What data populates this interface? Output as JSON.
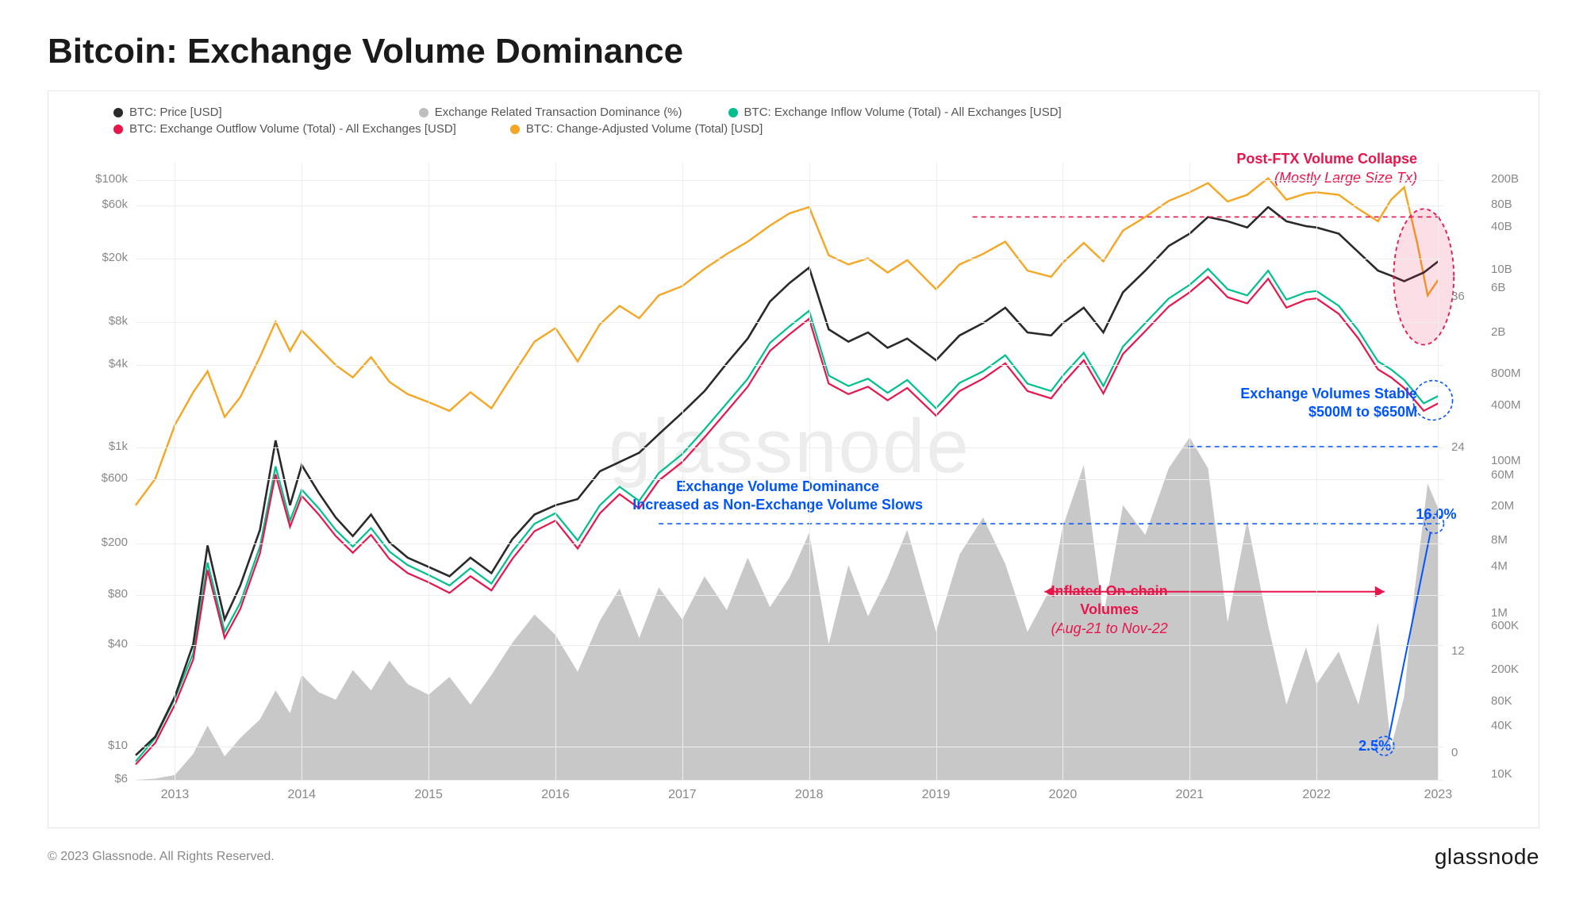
{
  "title": "Bitcoin: Exchange Volume Dominance",
  "copyright": "© 2023 Glassnode. All Rights Reserved.",
  "brand": "glassnode",
  "watermark": "glassnode",
  "legend": [
    {
      "label": "BTC: Price [USD]",
      "color": "#2a2a2a"
    },
    {
      "label": "Exchange Related Transaction Dominance (%)",
      "color": "#bfbfbf"
    },
    {
      "label": "BTC: Exchange Inflow Volume (Total) - All Exchanges [USD]",
      "color": "#00bf8f"
    },
    {
      "label": "BTC: Exchange Outflow Volume (Total) - All Exchanges [USD]",
      "color": "#e8154b"
    },
    {
      "label": "BTC: Change-Adjusted Volume (Total) [USD]",
      "color": "#f5a623"
    }
  ],
  "y_left": {
    "scale": "log",
    "ticks": [
      "$100k",
      "$60k",
      "",
      "$20k",
      "",
      "$8k",
      "",
      "$4k",
      "",
      "",
      "$1k",
      "",
      "$600",
      "",
      "",
      "",
      "$200",
      "",
      "",
      "$80",
      "",
      "",
      "$40",
      "",
      "",
      "",
      "",
      "$10",
      "",
      "$6"
    ],
    "positions": [
      0.028,
      0.069,
      0.11,
      0.155,
      0.205,
      0.258,
      0.293,
      0.328,
      0.398,
      0.428,
      0.462,
      0.488,
      0.513,
      0.538,
      0.565,
      0.592,
      0.617,
      0.638,
      0.668,
      0.7,
      0.73,
      0.755,
      0.782,
      0.816,
      0.848,
      0.88,
      0.91,
      0.946,
      0.973,
      1.0
    ]
  },
  "y_right1": {
    "scale": "linear",
    "ticks": [
      "",
      "36",
      "",
      "",
      "24",
      "",
      "",
      "",
      "12",
      "",
      "",
      "0"
    ],
    "positions": [
      0.0,
      0.218,
      0.3,
      0.38,
      0.463,
      0.545,
      0.628,
      0.71,
      0.793,
      0.875,
      0.917,
      0.958
    ]
  },
  "y_right2": {
    "scale": "log",
    "ticks": [
      "200B",
      "80B",
      "40B",
      "",
      "10B",
      "6B",
      "",
      "2B",
      "",
      "800M",
      "",
      "400M",
      "",
      "",
      "100M",
      "60M",
      "",
      "20M",
      "",
      "8M",
      "",
      "4M",
      "",
      "",
      "1M",
      "600K",
      "",
      "",
      "200K",
      "",
      "80K",
      "",
      "40K",
      "",
      "",
      "10K"
    ],
    "positions": [
      0.028,
      0.07,
      0.106,
      0.138,
      0.175,
      0.204,
      0.24,
      0.276,
      0.31,
      0.343,
      0.369,
      0.395,
      0.424,
      0.454,
      0.484,
      0.508,
      0.53,
      0.558,
      0.585,
      0.613,
      0.634,
      0.655,
      0.681,
      0.706,
      0.731,
      0.752,
      0.775,
      0.799,
      0.823,
      0.848,
      0.874,
      0.895,
      0.914,
      0.938,
      0.96,
      0.992
    ]
  },
  "x_axis": {
    "years": [
      "2013",
      "2014",
      "2015",
      "2016",
      "2017",
      "2018",
      "2019",
      "2020",
      "2021",
      "2022",
      "2023"
    ],
    "positions": [
      0.03,
      0.127,
      0.224,
      0.321,
      0.418,
      0.515,
      0.612,
      0.709,
      0.806,
      0.903,
      0.996
    ]
  },
  "colors": {
    "price": "#2a2a2a",
    "dominance_fill": "#b5b5b5",
    "inflow": "#00bf8f",
    "outflow": "#e8154b",
    "volume": "#f5a623",
    "grid": "#eeeeee",
    "bg": "#ffffff"
  },
  "series_price": [
    [
      0.0,
      0.96
    ],
    [
      0.015,
      0.93
    ],
    [
      0.03,
      0.865
    ],
    [
      0.044,
      0.78
    ],
    [
      0.055,
      0.62
    ],
    [
      0.068,
      0.74
    ],
    [
      0.08,
      0.685
    ],
    [
      0.095,
      0.595
    ],
    [
      0.107,
      0.45
    ],
    [
      0.118,
      0.555
    ],
    [
      0.127,
      0.49
    ],
    [
      0.14,
      0.535
    ],
    [
      0.153,
      0.575
    ],
    [
      0.166,
      0.605
    ],
    [
      0.18,
      0.57
    ],
    [
      0.194,
      0.615
    ],
    [
      0.208,
      0.64
    ],
    [
      0.224,
      0.655
    ],
    [
      0.24,
      0.67
    ],
    [
      0.256,
      0.64
    ],
    [
      0.272,
      0.665
    ],
    [
      0.288,
      0.61
    ],
    [
      0.305,
      0.57
    ],
    [
      0.321,
      0.555
    ],
    [
      0.338,
      0.545
    ],
    [
      0.355,
      0.5
    ],
    [
      0.37,
      0.485
    ],
    [
      0.385,
      0.47
    ],
    [
      0.4,
      0.44
    ],
    [
      0.418,
      0.405
    ],
    [
      0.435,
      0.37
    ],
    [
      0.452,
      0.325
    ],
    [
      0.468,
      0.285
    ],
    [
      0.485,
      0.225
    ],
    [
      0.5,
      0.195
    ],
    [
      0.515,
      0.17
    ],
    [
      0.53,
      0.27
    ],
    [
      0.545,
      0.29
    ],
    [
      0.56,
      0.275
    ],
    [
      0.575,
      0.3
    ],
    [
      0.59,
      0.285
    ],
    [
      0.612,
      0.32
    ],
    [
      0.63,
      0.28
    ],
    [
      0.648,
      0.26
    ],
    [
      0.665,
      0.235
    ],
    [
      0.682,
      0.275
    ],
    [
      0.7,
      0.28
    ],
    [
      0.709,
      0.26
    ],
    [
      0.725,
      0.235
    ],
    [
      0.74,
      0.275
    ],
    [
      0.755,
      0.21
    ],
    [
      0.772,
      0.175
    ],
    [
      0.79,
      0.135
    ],
    [
      0.806,
      0.115
    ],
    [
      0.82,
      0.088
    ],
    [
      0.835,
      0.095
    ],
    [
      0.85,
      0.105
    ],
    [
      0.866,
      0.072
    ],
    [
      0.88,
      0.095
    ],
    [
      0.895,
      0.103
    ],
    [
      0.903,
      0.105
    ],
    [
      0.92,
      0.115
    ],
    [
      0.935,
      0.145
    ],
    [
      0.95,
      0.175
    ],
    [
      0.96,
      0.183
    ],
    [
      0.97,
      0.192
    ],
    [
      0.985,
      0.178
    ],
    [
      0.996,
      0.16
    ]
  ],
  "series_volume": [
    [
      0.0,
      0.555
    ],
    [
      0.015,
      0.512
    ],
    [
      0.03,
      0.425
    ],
    [
      0.044,
      0.372
    ],
    [
      0.055,
      0.338
    ],
    [
      0.068,
      0.412
    ],
    [
      0.08,
      0.38
    ],
    [
      0.095,
      0.315
    ],
    [
      0.107,
      0.258
    ],
    [
      0.118,
      0.305
    ],
    [
      0.127,
      0.272
    ],
    [
      0.14,
      0.3
    ],
    [
      0.153,
      0.328
    ],
    [
      0.166,
      0.348
    ],
    [
      0.18,
      0.315
    ],
    [
      0.194,
      0.355
    ],
    [
      0.208,
      0.375
    ],
    [
      0.224,
      0.388
    ],
    [
      0.24,
      0.402
    ],
    [
      0.256,
      0.372
    ],
    [
      0.272,
      0.398
    ],
    [
      0.288,
      0.345
    ],
    [
      0.305,
      0.29
    ],
    [
      0.321,
      0.268
    ],
    [
      0.338,
      0.322
    ],
    [
      0.355,
      0.262
    ],
    [
      0.37,
      0.232
    ],
    [
      0.385,
      0.252
    ],
    [
      0.4,
      0.215
    ],
    [
      0.418,
      0.2
    ],
    [
      0.435,
      0.172
    ],
    [
      0.452,
      0.148
    ],
    [
      0.468,
      0.128
    ],
    [
      0.485,
      0.102
    ],
    [
      0.5,
      0.082
    ],
    [
      0.515,
      0.072
    ],
    [
      0.53,
      0.15
    ],
    [
      0.545,
      0.165
    ],
    [
      0.56,
      0.155
    ],
    [
      0.575,
      0.178
    ],
    [
      0.59,
      0.158
    ],
    [
      0.612,
      0.205
    ],
    [
      0.63,
      0.165
    ],
    [
      0.648,
      0.148
    ],
    [
      0.665,
      0.128
    ],
    [
      0.682,
      0.175
    ],
    [
      0.7,
      0.185
    ],
    [
      0.709,
      0.162
    ],
    [
      0.725,
      0.13
    ],
    [
      0.74,
      0.16
    ],
    [
      0.755,
      0.11
    ],
    [
      0.772,
      0.088
    ],
    [
      0.79,
      0.062
    ],
    [
      0.806,
      0.048
    ],
    [
      0.82,
      0.033
    ],
    [
      0.835,
      0.063
    ],
    [
      0.85,
      0.052
    ],
    [
      0.866,
      0.025
    ],
    [
      0.88,
      0.06
    ],
    [
      0.895,
      0.05
    ],
    [
      0.903,
      0.048
    ],
    [
      0.92,
      0.052
    ],
    [
      0.935,
      0.075
    ],
    [
      0.95,
      0.095
    ],
    [
      0.96,
      0.06
    ],
    [
      0.97,
      0.04
    ],
    [
      0.98,
      0.13
    ],
    [
      0.988,
      0.215
    ],
    [
      0.996,
      0.19
    ]
  ],
  "series_inflow": [
    [
      0.0,
      0.97
    ],
    [
      0.015,
      0.932
    ],
    [
      0.03,
      0.868
    ],
    [
      0.044,
      0.795
    ],
    [
      0.055,
      0.648
    ],
    [
      0.068,
      0.76
    ],
    [
      0.08,
      0.713
    ],
    [
      0.095,
      0.622
    ],
    [
      0.107,
      0.492
    ],
    [
      0.118,
      0.58
    ],
    [
      0.127,
      0.53
    ],
    [
      0.14,
      0.56
    ],
    [
      0.153,
      0.595
    ],
    [
      0.166,
      0.622
    ],
    [
      0.18,
      0.592
    ],
    [
      0.194,
      0.63
    ],
    [
      0.208,
      0.652
    ],
    [
      0.224,
      0.668
    ],
    [
      0.24,
      0.685
    ],
    [
      0.256,
      0.657
    ],
    [
      0.272,
      0.682
    ],
    [
      0.288,
      0.63
    ],
    [
      0.305,
      0.585
    ],
    [
      0.321,
      0.568
    ],
    [
      0.338,
      0.612
    ],
    [
      0.355,
      0.555
    ],
    [
      0.37,
      0.525
    ],
    [
      0.385,
      0.548
    ],
    [
      0.4,
      0.503
    ],
    [
      0.418,
      0.472
    ],
    [
      0.435,
      0.432
    ],
    [
      0.452,
      0.39
    ],
    [
      0.468,
      0.35
    ],
    [
      0.485,
      0.292
    ],
    [
      0.5,
      0.265
    ],
    [
      0.515,
      0.24
    ],
    [
      0.53,
      0.345
    ],
    [
      0.545,
      0.362
    ],
    [
      0.56,
      0.35
    ],
    [
      0.575,
      0.373
    ],
    [
      0.59,
      0.352
    ],
    [
      0.612,
      0.398
    ],
    [
      0.63,
      0.357
    ],
    [
      0.648,
      0.338
    ],
    [
      0.665,
      0.312
    ],
    [
      0.682,
      0.358
    ],
    [
      0.7,
      0.37
    ],
    [
      0.709,
      0.345
    ],
    [
      0.725,
      0.308
    ],
    [
      0.74,
      0.362
    ],
    [
      0.755,
      0.298
    ],
    [
      0.772,
      0.26
    ],
    [
      0.79,
      0.22
    ],
    [
      0.806,
      0.198
    ],
    [
      0.82,
      0.172
    ],
    [
      0.835,
      0.205
    ],
    [
      0.85,
      0.215
    ],
    [
      0.866,
      0.175
    ],
    [
      0.88,
      0.222
    ],
    [
      0.895,
      0.21
    ],
    [
      0.903,
      0.208
    ],
    [
      0.92,
      0.232
    ],
    [
      0.935,
      0.272
    ],
    [
      0.95,
      0.322
    ],
    [
      0.96,
      0.335
    ],
    [
      0.97,
      0.352
    ],
    [
      0.985,
      0.39
    ],
    [
      0.996,
      0.378
    ]
  ],
  "series_outflow": [
    [
      0.0,
      0.975
    ],
    [
      0.015,
      0.94
    ],
    [
      0.03,
      0.878
    ],
    [
      0.044,
      0.805
    ],
    [
      0.055,
      0.66
    ],
    [
      0.068,
      0.77
    ],
    [
      0.08,
      0.723
    ],
    [
      0.095,
      0.633
    ],
    [
      0.107,
      0.505
    ],
    [
      0.118,
      0.59
    ],
    [
      0.127,
      0.54
    ],
    [
      0.14,
      0.57
    ],
    [
      0.153,
      0.605
    ],
    [
      0.166,
      0.632
    ],
    [
      0.18,
      0.603
    ],
    [
      0.194,
      0.642
    ],
    [
      0.208,
      0.665
    ],
    [
      0.224,
      0.68
    ],
    [
      0.24,
      0.697
    ],
    [
      0.256,
      0.67
    ],
    [
      0.272,
      0.693
    ],
    [
      0.288,
      0.642
    ],
    [
      0.305,
      0.597
    ],
    [
      0.321,
      0.58
    ],
    [
      0.338,
      0.625
    ],
    [
      0.355,
      0.568
    ],
    [
      0.37,
      0.537
    ],
    [
      0.385,
      0.56
    ],
    [
      0.4,
      0.515
    ],
    [
      0.418,
      0.485
    ],
    [
      0.435,
      0.445
    ],
    [
      0.452,
      0.403
    ],
    [
      0.468,
      0.363
    ],
    [
      0.485,
      0.305
    ],
    [
      0.5,
      0.278
    ],
    [
      0.515,
      0.253
    ],
    [
      0.53,
      0.358
    ],
    [
      0.545,
      0.375
    ],
    [
      0.56,
      0.363
    ],
    [
      0.575,
      0.385
    ],
    [
      0.59,
      0.365
    ],
    [
      0.612,
      0.41
    ],
    [
      0.63,
      0.37
    ],
    [
      0.648,
      0.35
    ],
    [
      0.665,
      0.325
    ],
    [
      0.682,
      0.37
    ],
    [
      0.7,
      0.382
    ],
    [
      0.709,
      0.358
    ],
    [
      0.725,
      0.32
    ],
    [
      0.74,
      0.374
    ],
    [
      0.755,
      0.31
    ],
    [
      0.772,
      0.273
    ],
    [
      0.79,
      0.233
    ],
    [
      0.806,
      0.21
    ],
    [
      0.82,
      0.185
    ],
    [
      0.835,
      0.218
    ],
    [
      0.85,
      0.228
    ],
    [
      0.866,
      0.188
    ],
    [
      0.88,
      0.235
    ],
    [
      0.895,
      0.222
    ],
    [
      0.903,
      0.22
    ],
    [
      0.92,
      0.245
    ],
    [
      0.935,
      0.285
    ],
    [
      0.95,
      0.335
    ],
    [
      0.96,
      0.348
    ],
    [
      0.97,
      0.365
    ],
    [
      0.985,
      0.402
    ],
    [
      0.996,
      0.39
    ]
  ],
  "series_dominance": [
    [
      0.0,
      1.0
    ],
    [
      0.015,
      0.998
    ],
    [
      0.03,
      0.992
    ],
    [
      0.044,
      0.958
    ],
    [
      0.055,
      0.912
    ],
    [
      0.068,
      0.962
    ],
    [
      0.08,
      0.932
    ],
    [
      0.095,
      0.902
    ],
    [
      0.107,
      0.855
    ],
    [
      0.118,
      0.892
    ],
    [
      0.127,
      0.83
    ],
    [
      0.14,
      0.858
    ],
    [
      0.153,
      0.87
    ],
    [
      0.166,
      0.822
    ],
    [
      0.18,
      0.855
    ],
    [
      0.194,
      0.807
    ],
    [
      0.208,
      0.845
    ],
    [
      0.224,
      0.862
    ],
    [
      0.24,
      0.833
    ],
    [
      0.256,
      0.878
    ],
    [
      0.272,
      0.83
    ],
    [
      0.288,
      0.778
    ],
    [
      0.305,
      0.732
    ],
    [
      0.321,
      0.765
    ],
    [
      0.338,
      0.825
    ],
    [
      0.355,
      0.742
    ],
    [
      0.37,
      0.69
    ],
    [
      0.385,
      0.77
    ],
    [
      0.4,
      0.688
    ],
    [
      0.418,
      0.74
    ],
    [
      0.435,
      0.67
    ],
    [
      0.452,
      0.725
    ],
    [
      0.468,
      0.64
    ],
    [
      0.485,
      0.72
    ],
    [
      0.5,
      0.672
    ],
    [
      0.515,
      0.6
    ],
    [
      0.53,
      0.78
    ],
    [
      0.545,
      0.652
    ],
    [
      0.56,
      0.735
    ],
    [
      0.575,
      0.672
    ],
    [
      0.59,
      0.595
    ],
    [
      0.612,
      0.76
    ],
    [
      0.63,
      0.635
    ],
    [
      0.648,
      0.575
    ],
    [
      0.665,
      0.65
    ],
    [
      0.682,
      0.76
    ],
    [
      0.7,
      0.688
    ],
    [
      0.709,
      0.59
    ],
    [
      0.725,
      0.49
    ],
    [
      0.74,
      0.735
    ],
    [
      0.755,
      0.555
    ],
    [
      0.772,
      0.603
    ],
    [
      0.79,
      0.495
    ],
    [
      0.806,
      0.445
    ],
    [
      0.82,
      0.495
    ],
    [
      0.835,
      0.745
    ],
    [
      0.85,
      0.58
    ],
    [
      0.866,
      0.75
    ],
    [
      0.88,
      0.878
    ],
    [
      0.895,
      0.785
    ],
    [
      0.903,
      0.845
    ],
    [
      0.92,
      0.792
    ],
    [
      0.935,
      0.878
    ],
    [
      0.95,
      0.745
    ],
    [
      0.96,
      0.947
    ],
    [
      0.97,
      0.865
    ],
    [
      0.978,
      0.693
    ],
    [
      0.988,
      0.52
    ],
    [
      0.996,
      0.56
    ]
  ],
  "annotations": {
    "post_ftx": {
      "title": "Post-FTX Volume Collapse",
      "sub": "(Mostly Large Size Tx)",
      "color": "#e8154b"
    },
    "ex_stable": {
      "title": "Exchange Volumes Stable",
      "sub": "$500M to $650M",
      "color": "#0054ff"
    },
    "ex_dom": {
      "title": "Exchange Volume Dominance",
      "sub": "Increased as Non-Exchange Volume Slows",
      "color": "#0054ff"
    },
    "inflated": {
      "title": "Inflated On-chain",
      "title2": "Volumes",
      "sub": "(Aug-21 to Nov-22",
      "color": "#e8154b"
    },
    "pct_high": "16.0%",
    "pct_low": "2.5%"
  }
}
